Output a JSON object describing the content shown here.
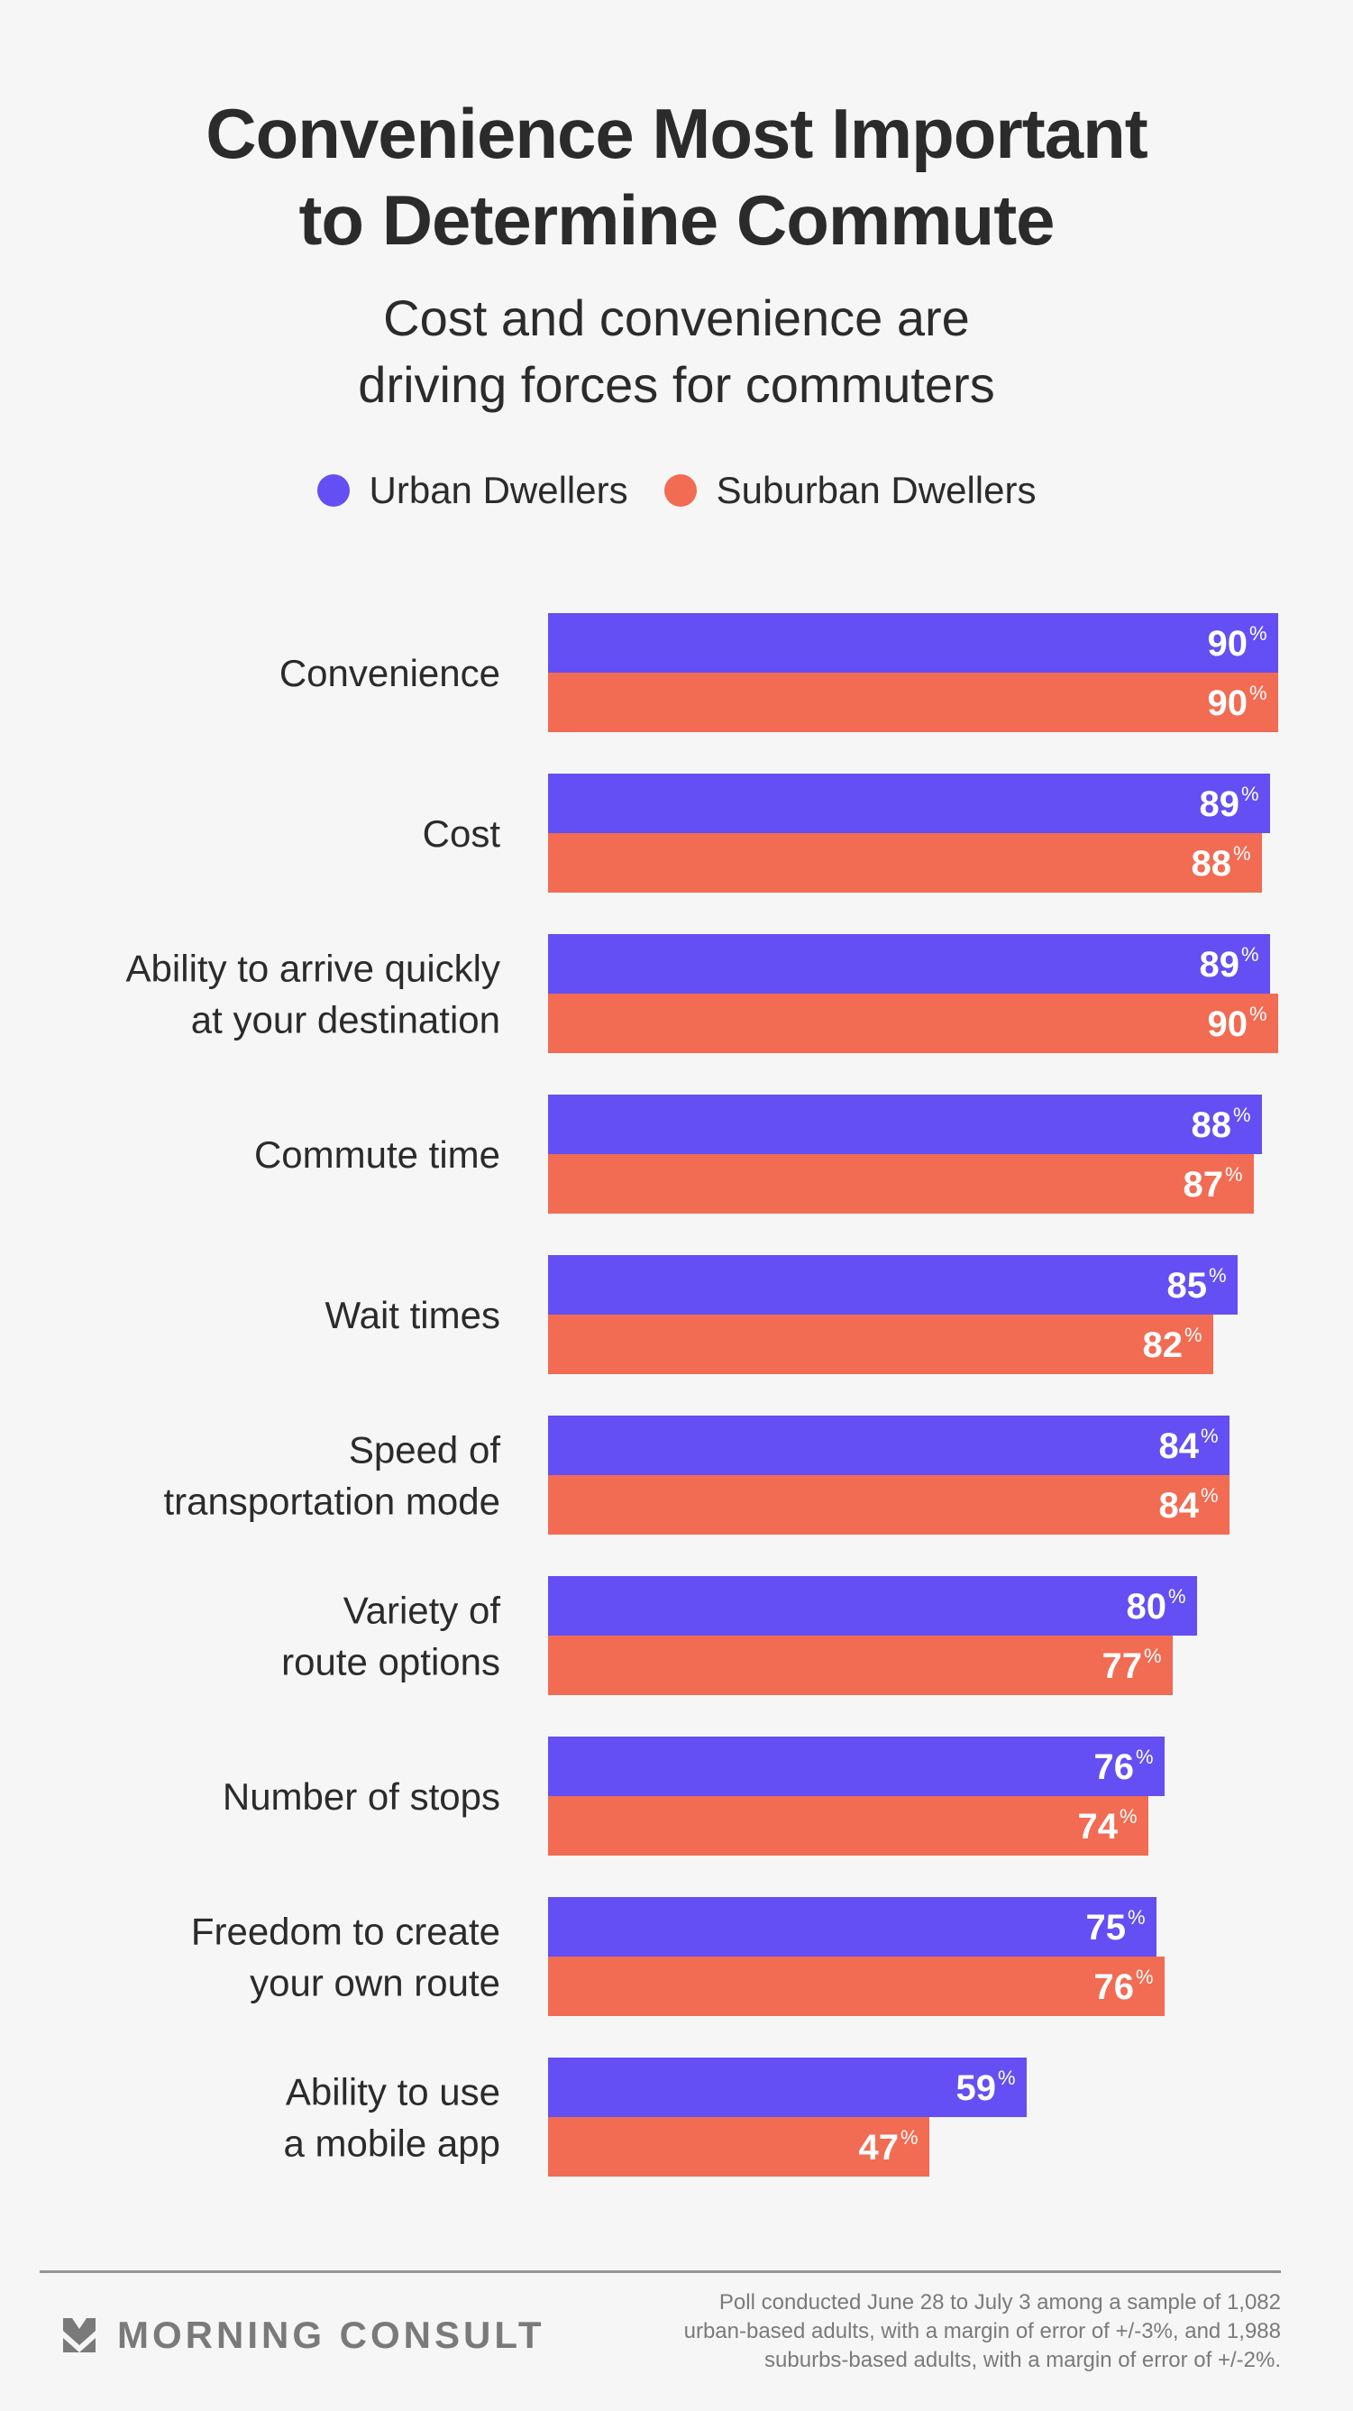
{
  "header": {
    "title_line1": "Convenience Most Important",
    "title_line2": "to Determine Commute",
    "subtitle_line1": "Cost and convenience are",
    "subtitle_line2": "driving forces for commuters"
  },
  "legend": [
    {
      "label": "Urban Dwellers",
      "color": "#634ff3"
    },
    {
      "label": "Suburban Dwellers",
      "color": "#f26b53"
    }
  ],
  "chart_data": {
    "type": "bar",
    "orientation": "horizontal",
    "title": "Convenience Most Important to Determine Commute",
    "subtitle": "Cost and convenience are driving forces for commuters",
    "xlabel": "",
    "ylabel": "",
    "xlim": [
      0,
      100
    ],
    "grid": false,
    "legend_position": "top-center",
    "value_suffix": "%",
    "categories": [
      [
        "Convenience"
      ],
      [
        "Cost"
      ],
      [
        "Ability to arrive quickly",
        "at your destination"
      ],
      [
        "Commute time"
      ],
      [
        "Wait times"
      ],
      [
        "Speed of",
        "transportation mode"
      ],
      [
        "Variety of",
        "route options"
      ],
      [
        "Number of stops"
      ],
      [
        "Freedom to create",
        "your own route"
      ],
      [
        "Ability to use",
        "a mobile app"
      ]
    ],
    "series": [
      {
        "name": "Urban Dwellers",
        "color": "#634ff3",
        "values": [
          90,
          89,
          89,
          88,
          85,
          84,
          80,
          76,
          75,
          59
        ]
      },
      {
        "name": "Suburban Dwellers",
        "color": "#f26b53",
        "values": [
          90,
          88,
          90,
          87,
          82,
          84,
          77,
          74,
          76,
          47
        ]
      }
    ]
  },
  "footer": {
    "brand": "MORNING CONSULT",
    "note_line1": "Poll conducted June 28 to July 3 among a sample of 1,082",
    "note_line2": "urban-based adults, with a margin of error of +/-3%, and 1,988",
    "note_line3": "suburbs-based adults, with a margin of error of +/-2%."
  }
}
